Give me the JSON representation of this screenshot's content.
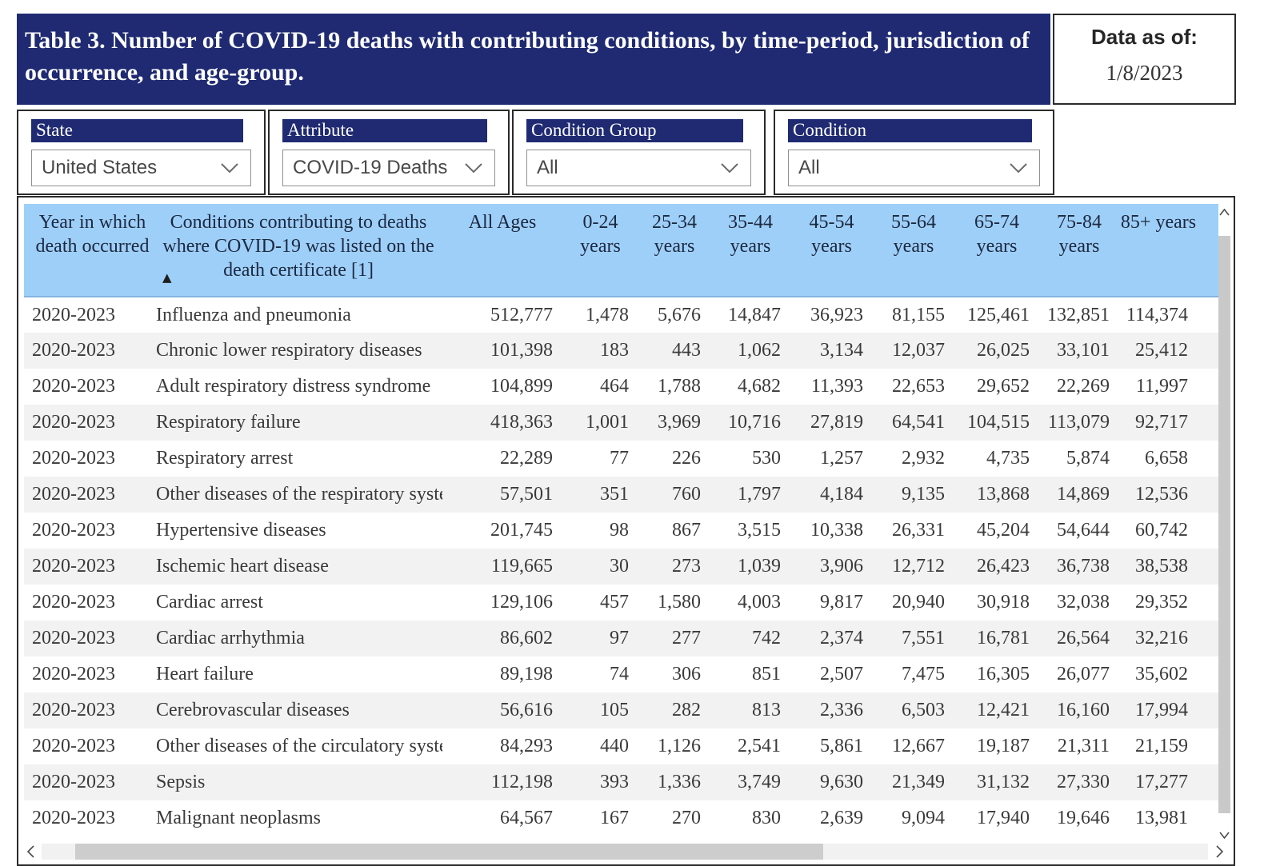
{
  "header": {
    "title": "Table 3. Number of COVID-19 deaths with contributing conditions, by time-period, jurisdiction of occurrence, and age-group.",
    "data_as_of_label": "Data as of:",
    "data_as_of_value": "1/8/2023"
  },
  "filters": {
    "state": {
      "label": "State",
      "value": "United States"
    },
    "attribute": {
      "label": "Attribute",
      "value": "COVID-19 Deaths"
    },
    "condition_group": {
      "label": "Condition Group",
      "value": "All"
    },
    "condition": {
      "label": "Condition",
      "value": "All"
    }
  },
  "colors": {
    "navy": "#1f2a72",
    "table_header_blue": "#9ecff8",
    "row_alt_gray": "#f2f2f2",
    "border_dark": "#2b2b2b"
  },
  "table": {
    "sort_indicator": "▲",
    "columns": [
      "Year in which death occurred",
      "Conditions contributing to deaths where COVID-19 was listed on the death certificate [1]",
      "All Ages",
      "0-24 years",
      "25-34 years",
      "35-44 years",
      "45-54 years",
      "55-64 years",
      "65-74 years",
      "75-84 years",
      "85+ years"
    ],
    "rows": [
      [
        "2020-2023",
        "Influenza and pneumonia",
        "512,777",
        "1,478",
        "5,676",
        "14,847",
        "36,923",
        "81,155",
        "125,461",
        "132,851",
        "114,374"
      ],
      [
        "2020-2023",
        "Chronic lower respiratory diseases",
        "101,398",
        "183",
        "443",
        "1,062",
        "3,134",
        "12,037",
        "26,025",
        "33,101",
        "25,412"
      ],
      [
        "2020-2023",
        "Adult respiratory distress syndrome",
        "104,899",
        "464",
        "1,788",
        "4,682",
        "11,393",
        "22,653",
        "29,652",
        "22,269",
        "11,997"
      ],
      [
        "2020-2023",
        "Respiratory failure",
        "418,363",
        "1,001",
        "3,969",
        "10,716",
        "27,819",
        "64,541",
        "104,515",
        "113,079",
        "92,717"
      ],
      [
        "2020-2023",
        "Respiratory arrest",
        "22,289",
        "77",
        "226",
        "530",
        "1,257",
        "2,932",
        "4,735",
        "5,874",
        "6,658"
      ],
      [
        "2020-2023",
        "Other diseases of the respiratory system",
        "57,501",
        "351",
        "760",
        "1,797",
        "4,184",
        "9,135",
        "13,868",
        "14,869",
        "12,536"
      ],
      [
        "2020-2023",
        "Hypertensive diseases",
        "201,745",
        "98",
        "867",
        "3,515",
        "10,338",
        "26,331",
        "45,204",
        "54,644",
        "60,742"
      ],
      [
        "2020-2023",
        "Ischemic heart disease",
        "119,665",
        "30",
        "273",
        "1,039",
        "3,906",
        "12,712",
        "26,423",
        "36,738",
        "38,538"
      ],
      [
        "2020-2023",
        "Cardiac arrest",
        "129,106",
        "457",
        "1,580",
        "4,003",
        "9,817",
        "20,940",
        "30,918",
        "32,038",
        "29,352"
      ],
      [
        "2020-2023",
        "Cardiac arrhythmia",
        "86,602",
        "97",
        "277",
        "742",
        "2,374",
        "7,551",
        "16,781",
        "26,564",
        "32,216"
      ],
      [
        "2020-2023",
        "Heart failure",
        "89,198",
        "74",
        "306",
        "851",
        "2,507",
        "7,475",
        "16,305",
        "26,077",
        "35,602"
      ],
      [
        "2020-2023",
        "Cerebrovascular diseases",
        "56,616",
        "105",
        "282",
        "813",
        "2,336",
        "6,503",
        "12,421",
        "16,160",
        "17,994"
      ],
      [
        "2020-2023",
        "Other diseases of the circulatory system",
        "84,293",
        "440",
        "1,126",
        "2,541",
        "5,861",
        "12,667",
        "19,187",
        "21,311",
        "21,159"
      ],
      [
        "2020-2023",
        "Sepsis",
        "112,198",
        "393",
        "1,336",
        "3,749",
        "9,630",
        "21,349",
        "31,132",
        "27,330",
        "17,277"
      ],
      [
        "2020-2023",
        "Malignant neoplasms",
        "64,567",
        "167",
        "270",
        "830",
        "2,639",
        "9,094",
        "17,940",
        "19,646",
        "13,981"
      ]
    ]
  }
}
